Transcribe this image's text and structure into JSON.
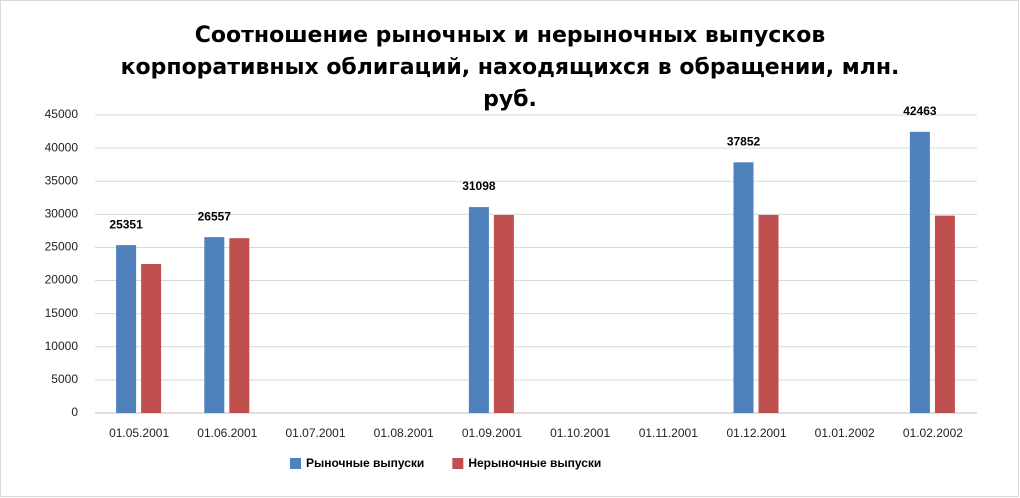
{
  "chart_data": {
    "type": "bar",
    "title": "Соотношение рыночных и нерыночных выпусков корпоративных облигаций, находящихся в обращении, млн. руб.",
    "categories": [
      "01.05.2001",
      "01.06.2001",
      "01.07.2001",
      "01.08.2001",
      "01.09.2001",
      "01.10.2001",
      "01.11.2001",
      "01.12.2001",
      "01.01.2002",
      "01.02.2002"
    ],
    "series": [
      {
        "name": "Рыночные выпуски",
        "color": "#4f81bd",
        "values": [
          25351,
          26557,
          null,
          null,
          31098,
          null,
          null,
          37852,
          null,
          42463
        ],
        "data_labels": true
      },
      {
        "name": "Нерыночные выпуски",
        "color": "#c0504d",
        "values": [
          22500,
          26400,
          null,
          null,
          29900,
          null,
          null,
          29900,
          null,
          29800
        ],
        "data_labels": false
      }
    ],
    "ylim": [
      0,
      45000
    ],
    "yticks": [
      0,
      5000,
      10000,
      15000,
      20000,
      25000,
      30000,
      35000,
      40000,
      45000
    ],
    "grid": true,
    "legend": "bottom"
  }
}
